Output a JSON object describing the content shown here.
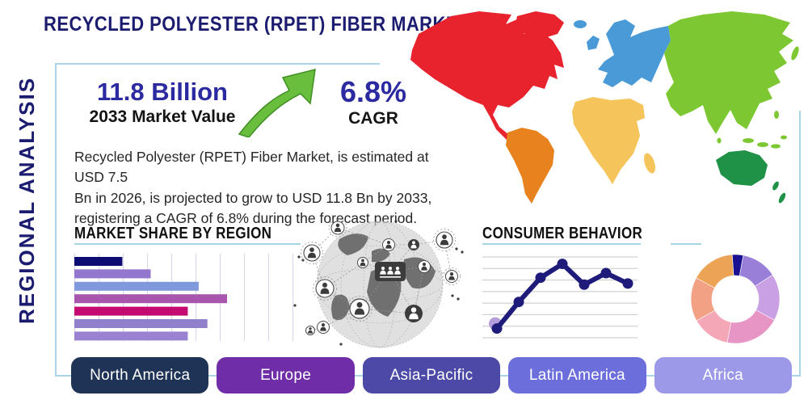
{
  "header": {
    "title": "RECYCLED POLYESTER (RPET) FIBER MARKET"
  },
  "sidebar": {
    "vertical_label": "REGIONAL ANALYSIS"
  },
  "stats": {
    "market_value": "11.8 Billion",
    "market_value_label": "2033 Market Value",
    "cagr_value": "6.8%",
    "cagr_label": "CAGR"
  },
  "description": {
    "lines": [
      "Recycled Polyester (RPET) Fiber Market, is estimated at USD 7.5",
      "Bn in 2026, is projected to grow to USD 11.8 Bn by 2033,",
      "registering a CAGR of 6.8% during the forecast period."
    ]
  },
  "theme": {
    "navy_heading": "#1b1b6f",
    "stat_blue": "#2b2aa0",
    "accent_line_blue": "#a9d3e6",
    "arrow_green": "#6abe3e",
    "text_dark": "#141414"
  },
  "world_map": {
    "colors": {
      "north_america": "#e8232e",
      "greenland": "#e8232e",
      "south_america": "#e8821e",
      "europe": "#4a9ad8",
      "africa": "#f5c45a",
      "asia": "#7dc832",
      "oceania": "#1f9247"
    }
  },
  "region_buttons": [
    {
      "label": "North America",
      "color": "#1e3355"
    },
    {
      "label": "Europe",
      "color": "#6f2da8"
    },
    {
      "label": "Asia-Pacific",
      "color": "#4c4aa6"
    },
    {
      "label": "Latin America",
      "color": "#6c6fdb"
    },
    {
      "label": "Africa",
      "color": "#9b99e8"
    }
  ],
  "chart_data": [
    {
      "id": "market_share_by_region",
      "type": "bar",
      "orientation": "horizontal",
      "title": "MARKET SHARE BY REGION",
      "categories": [
        "",
        "",
        "",
        "",
        "",
        "",
        ""
      ],
      "values": [
        22,
        35,
        57,
        70,
        52,
        61,
        52
      ],
      "colors": [
        "#0c0c72",
        "#9376ce",
        "#8099dd",
        "#a855ad",
        "#c40a70",
        "#9180cc",
        "#9a82d2"
      ],
      "xlim": [
        0,
        100
      ],
      "grid": "vertical",
      "note": "bar lengths as percent of axis; no tick labels shown"
    },
    {
      "id": "consumer_behavior",
      "type": "line",
      "title": "CONSUMER BEHAVIOR",
      "x": [
        1,
        2,
        3,
        4,
        5,
        6,
        7
      ],
      "values": [
        0.8,
        3.1,
        5.2,
        6.4,
        4.6,
        5.6,
        4.7
      ],
      "ylim": [
        0,
        7
      ],
      "grid": "horizontal",
      "color": "#1e1b7a",
      "start_dot_color": "#b39ddb",
      "note": "no axis tick labels shown"
    },
    {
      "id": "regional_mix_donut",
      "type": "pie",
      "donut": true,
      "start_angle_deg": -4,
      "values": [
        4,
        13,
        17,
        20,
        14,
        16,
        16
      ],
      "colors": [
        "#1a1090",
        "#9a7fd9",
        "#c9a0e4",
        "#e795c5",
        "#f4a7b6",
        "#f2a185",
        "#eca355"
      ],
      "note": "no labels shown"
    }
  ]
}
